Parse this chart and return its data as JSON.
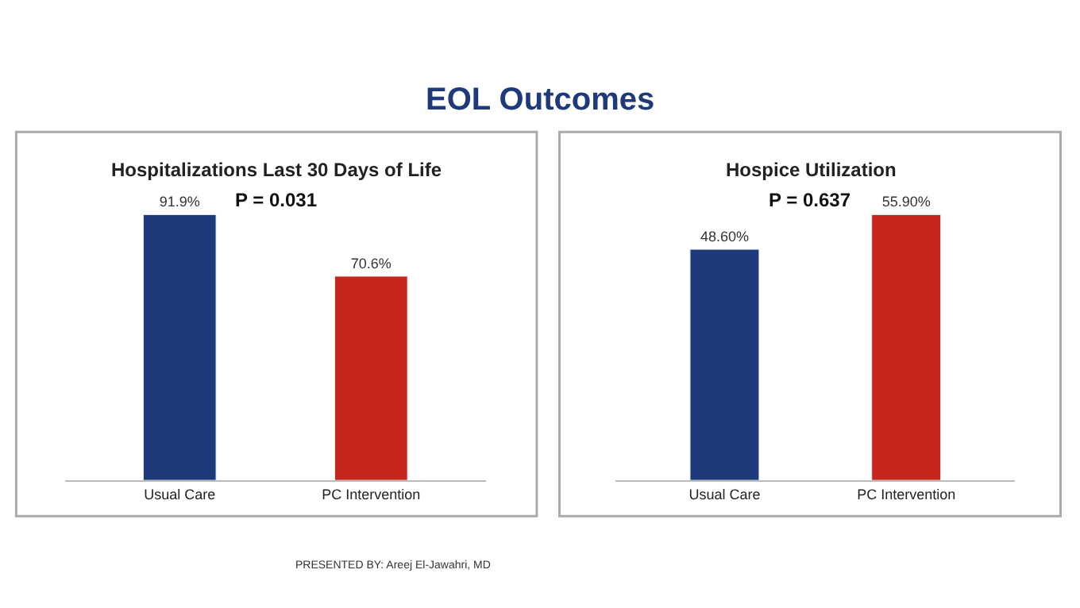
{
  "chart_data": [
    {
      "type": "bar",
      "title": "Hospitalizations Last 30 Days of Life",
      "subtitle": "P = 0.031",
      "categories": [
        "Usual Care",
        "PC Intervention"
      ],
      "values": [
        91.9,
        70.6
      ],
      "colors": [
        "#1f3a7a",
        "#c5261c"
      ],
      "value_labels": [
        "91.9%",
        "70.6%"
      ],
      "tick_labels": "x",
      "annotations": [
        "EOL Outcomes"
      ]
    },
    {
      "type": "bar",
      "title": "Hospice Utilization",
      "subtitle": "P = 0.637",
      "categories": [
        "Usual Care",
        "PC Intervention"
      ],
      "values": [
        48.6,
        55.9
      ],
      "colors": [
        "#1f3a7a",
        "#c5261c"
      ],
      "value_labels": [
        "48.60%",
        "55.90%"
      ],
      "tick_labels": "x",
      "annotations": [
        "PRESENTED BY: Areej El-Jawahri, MD"
      ]
    }
  ]
}
